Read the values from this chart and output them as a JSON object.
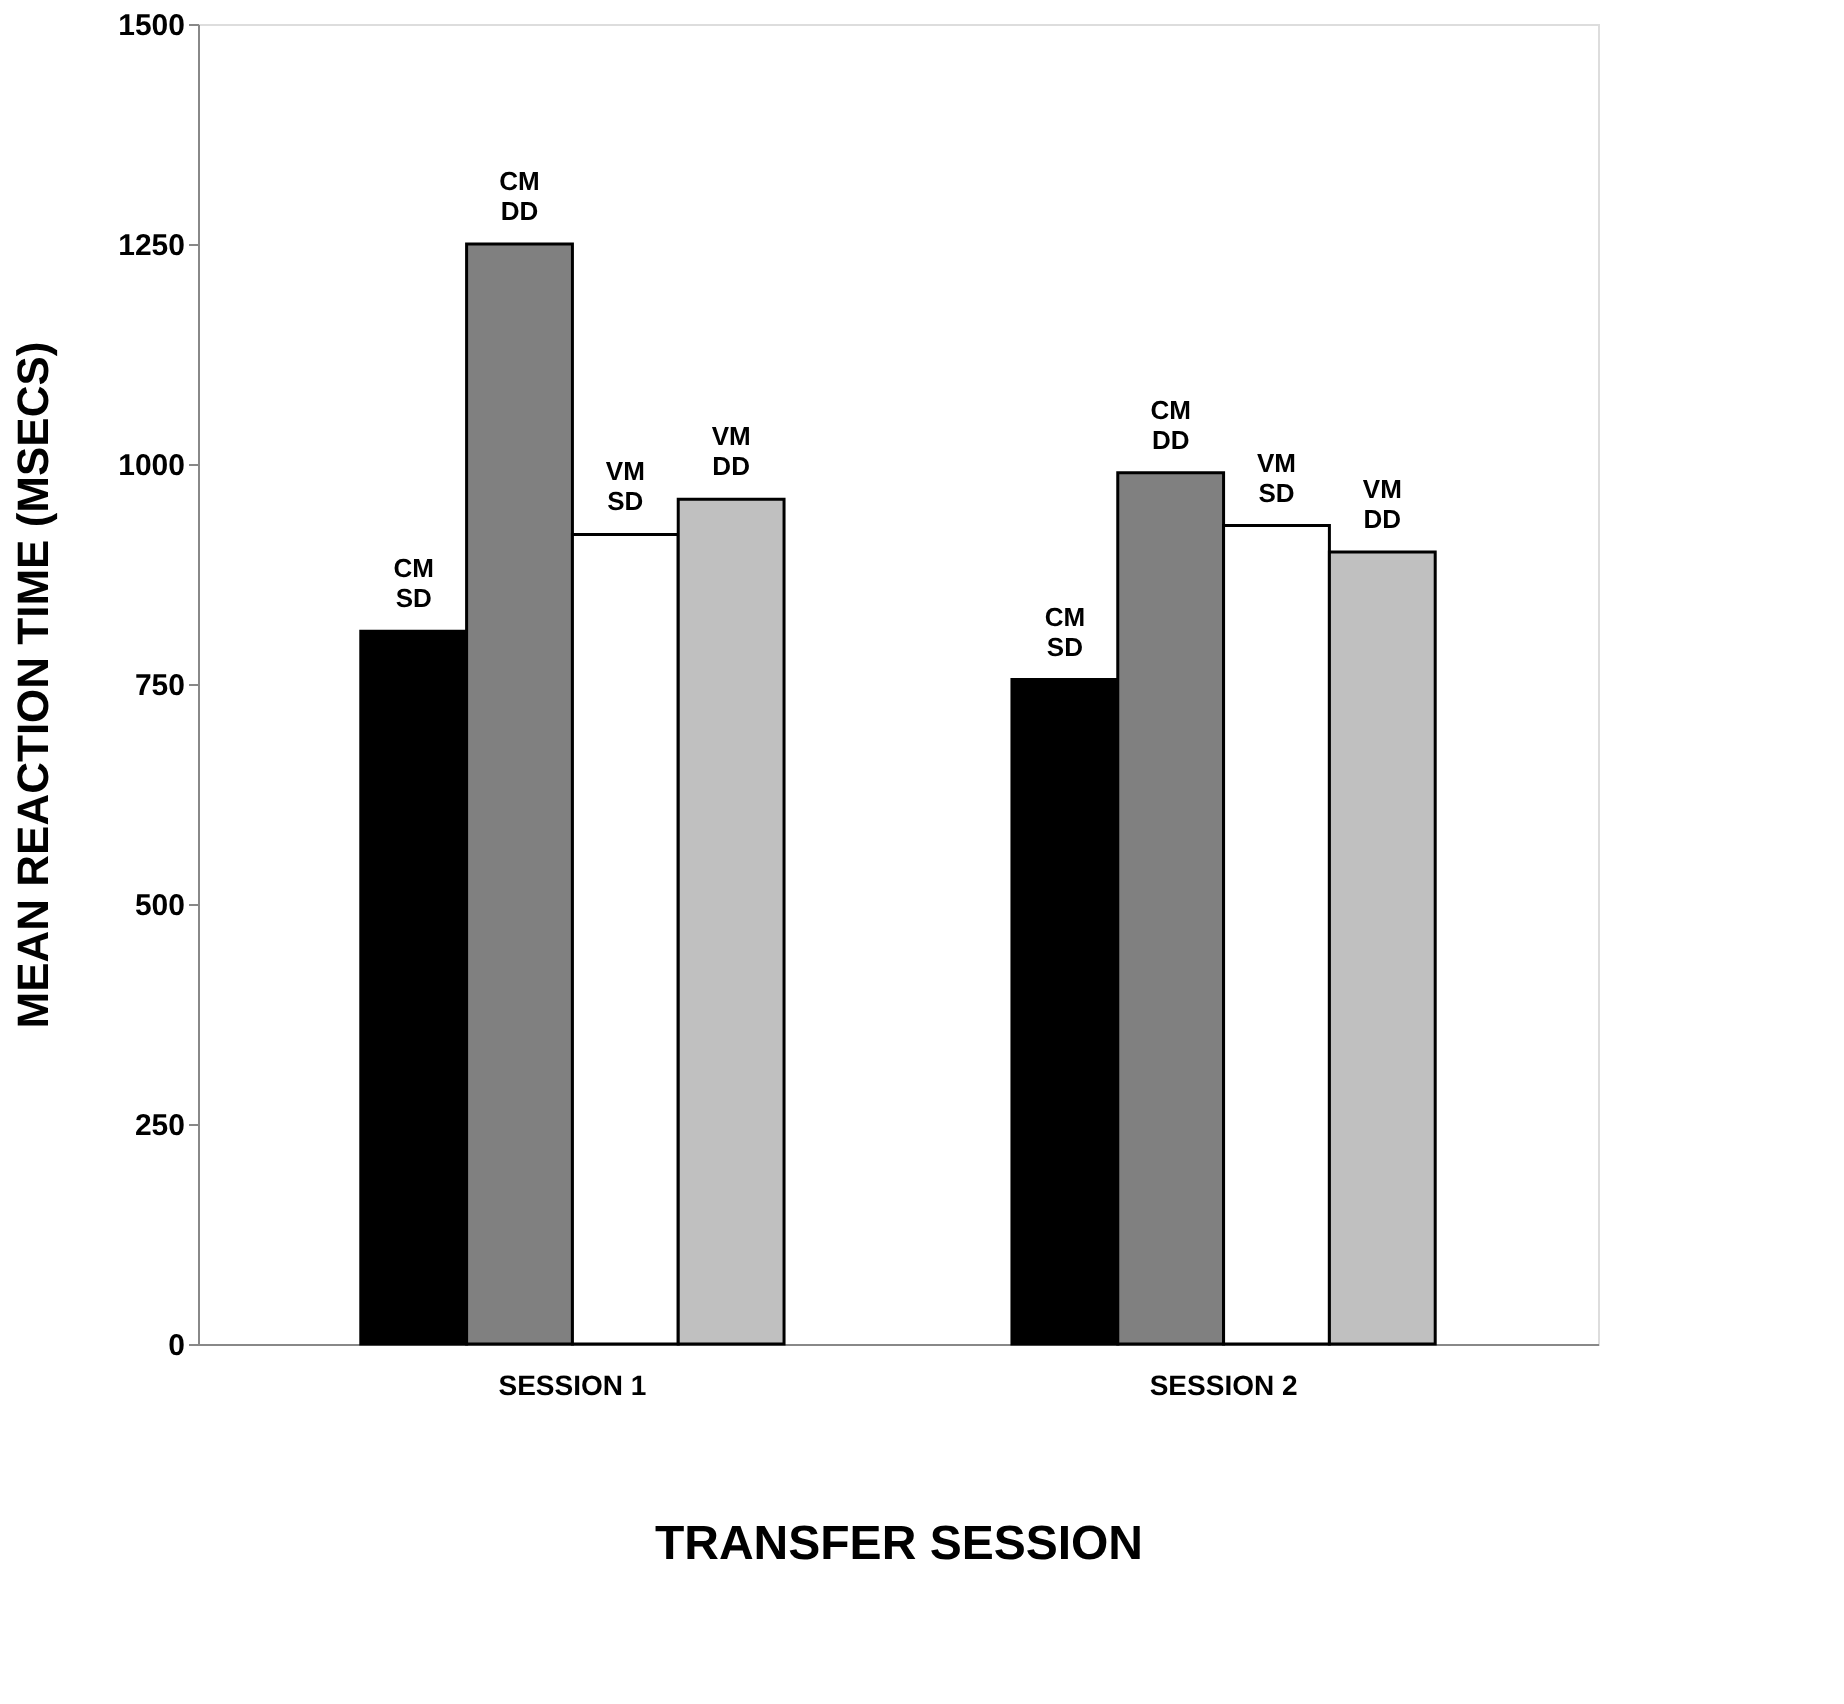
{
  "chart_data": {
    "type": "bar",
    "xlabel": "TRANSFER SESSION",
    "ylabel": "MEAN REACTION TIME (MSECS)",
    "categories": [
      "SESSION 1",
      "SESSION 2"
    ],
    "series": [
      {
        "name": "CM SD",
        "color": "#000000",
        "values": [
          810,
          755
        ]
      },
      {
        "name": "CM DD",
        "color": "#808080",
        "values": [
          1250,
          990
        ]
      },
      {
        "name": "VM SD",
        "color": "#ffffff",
        "values": [
          920,
          930
        ]
      },
      {
        "name": "VM DD",
        "color": "#c0c0c0",
        "values": [
          960,
          900
        ]
      }
    ],
    "ylim": [
      0,
      1500
    ],
    "yticks": [
      0,
      250,
      500,
      750,
      1000,
      1250,
      1500
    ],
    "grid": false,
    "legend": false
  }
}
